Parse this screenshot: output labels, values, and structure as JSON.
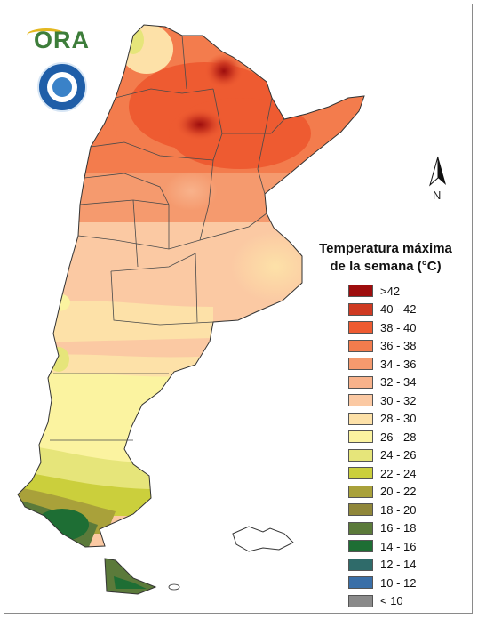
{
  "legend": {
    "title_line1": "Temperatura máxima",
    "title_line2": "de la semana (°C)",
    "items": [
      {
        "label": ">42",
        "color": "#9e0d0d"
      },
      {
        "label": "40 - 42",
        "color": "#cf3a22"
      },
      {
        "label": "38 - 40",
        "color": "#ee5b31"
      },
      {
        "label": "36 - 38",
        "color": "#f37c4d"
      },
      {
        "label": "34 - 36",
        "color": "#f59a6e"
      },
      {
        "label": "32 - 34",
        "color": "#f8b28b"
      },
      {
        "label": "30 - 32",
        "color": "#fbc9a3"
      },
      {
        "label": "28 - 30",
        "color": "#fde1a8"
      },
      {
        "label": "26 - 28",
        "color": "#fbf3a0"
      },
      {
        "label": "24 - 26",
        "color": "#e6e57a"
      },
      {
        "label": "22 - 24",
        "color": "#cbcf3c"
      },
      {
        "label": "20 - 22",
        "color": "#a9a13a"
      },
      {
        "label": "18 - 20",
        "color": "#90873a"
      },
      {
        "label": "16 - 18",
        "color": "#5b7a3a"
      },
      {
        "label": "14 - 16",
        "color": "#1e6e34"
      },
      {
        "label": "12 - 14",
        "color": "#2f6b6a"
      },
      {
        "label": "10 - 12",
        "color": "#3a6fa8"
      },
      {
        "label": "< 10",
        "color": "#8a8a8a"
      }
    ]
  },
  "logo": {
    "text": "ORA"
  },
  "north_arrow": {
    "label": "N"
  }
}
